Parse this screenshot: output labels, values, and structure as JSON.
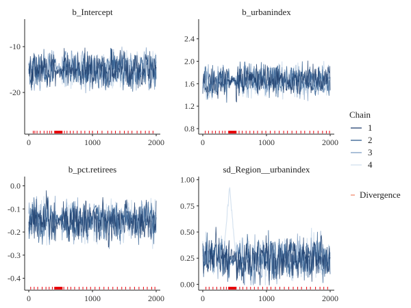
{
  "chart_data": [
    {
      "type": "line",
      "title": "b_Intercept",
      "x_range": [
        0,
        2000
      ],
      "xticks": [
        "0",
        "1000",
        "2000"
      ],
      "ylim": [
        -28.5,
        -4
      ],
      "yticks": [
        {
          "value": -10,
          "label": "-10"
        },
        {
          "value": -20,
          "label": "-20"
        }
      ],
      "series_center": -15,
      "series_spread": 3.2,
      "dense_band": [
        420,
        520
      ],
      "divergence_band": [
        400,
        530
      ],
      "divergences_x": [
        70,
        95,
        130,
        180,
        240,
        290,
        330,
        360,
        560,
        600,
        650,
        700,
        760,
        820,
        880,
        950,
        1000,
        1080,
        1150,
        1240,
        1300,
        1360,
        1430,
        1500,
        1560,
        1620,
        1700,
        1760,
        1830,
        1890,
        1950
      ]
    },
    {
      "type": "line",
      "title": "b_urbanindex",
      "x_range": [
        0,
        2000
      ],
      "xticks": [
        "0",
        "1000",
        "2000"
      ],
      "ylim": [
        0.75,
        2.75
      ],
      "yticks": [
        {
          "value": 2.4,
          "label": "2.4"
        },
        {
          "value": 2.0,
          "label": "2.0"
        },
        {
          "value": 1.6,
          "label": "1.6"
        },
        {
          "value": 1.2,
          "label": "1.2"
        },
        {
          "value": 0.8,
          "label": "0.8"
        }
      ],
      "series_center": 1.65,
      "series_spread": 0.22,
      "dense_band": [
        420,
        520
      ],
      "divergence_band": [
        400,
        530
      ],
      "divergences_x": [
        40,
        90,
        150,
        200,
        260,
        310,
        350,
        570,
        620,
        680,
        740,
        800,
        860,
        930,
        990,
        1060,
        1130,
        1200,
        1270,
        1330,
        1400,
        1470,
        1540,
        1600,
        1680,
        1740,
        1810,
        1880,
        1940,
        1990
      ]
    },
    {
      "type": "line",
      "title": "b_pct.retirees",
      "x_range": [
        0,
        2000
      ],
      "xticks": [
        "0",
        "1000",
        "2000"
      ],
      "ylim": [
        -0.44,
        0.04
      ],
      "yticks": [
        {
          "value": 0.0,
          "label": "0.0"
        },
        {
          "value": -0.1,
          "label": "-0.1"
        },
        {
          "value": -0.2,
          "label": "-0.2"
        },
        {
          "value": -0.3,
          "label": "-0.3"
        },
        {
          "value": -0.4,
          "label": "-0.4"
        }
      ],
      "series_center": -0.15,
      "series_spread": 0.07,
      "dense_band": [
        420,
        520
      ],
      "divergence_band": [
        400,
        530
      ],
      "divergences_x": [
        30,
        85,
        140,
        210,
        270,
        320,
        370,
        550,
        610,
        660,
        720,
        790,
        850,
        910,
        970,
        1040,
        1110,
        1180,
        1250,
        1320,
        1390,
        1460,
        1520,
        1590,
        1660,
        1730,
        1800,
        1860,
        1930,
        1980
      ]
    },
    {
      "type": "line",
      "title": "sd_Region__urbanindex",
      "x_range": [
        0,
        2000
      ],
      "xticks": [
        "0",
        "1000",
        "2000"
      ],
      "ylim": [
        -0.03,
        1.03
      ],
      "yticks": [
        {
          "value": 1.0,
          "label": "1.00"
        },
        {
          "value": 0.75,
          "label": "0.75"
        },
        {
          "value": 0.5,
          "label": "0.50"
        },
        {
          "value": 0.25,
          "label": "0.25"
        },
        {
          "value": 0.0,
          "label": "0.00"
        }
      ],
      "series_center": 0.25,
      "series_spread": 0.16,
      "dense_band": [
        420,
        520
      ],
      "divergence_band": [
        400,
        530
      ],
      "excursion": {
        "chain": "4",
        "x_range": [
          320,
          520
        ],
        "peak": 0.98
      },
      "divergences_x": [
        50,
        100,
        160,
        220,
        280,
        330,
        370,
        580,
        630,
        690,
        750,
        810,
        870,
        940,
        1010,
        1070,
        1140,
        1210,
        1280,
        1350,
        1420,
        1490,
        1550,
        1630,
        1690,
        1770,
        1840,
        1900,
        1960
      ]
    }
  ],
  "legend": {
    "title": "Chain",
    "placement": "right",
    "entries": [
      "1",
      "2",
      "3",
      "4"
    ],
    "divergence_label": "Divergence"
  },
  "colors": {
    "chains": [
      "#1f3f6e",
      "#2f5c8e",
      "#7e9fc4",
      "#d2e0ee"
    ],
    "divergence": "#e8000b",
    "divergence_legend": "#f08060",
    "axis": "#222222"
  }
}
